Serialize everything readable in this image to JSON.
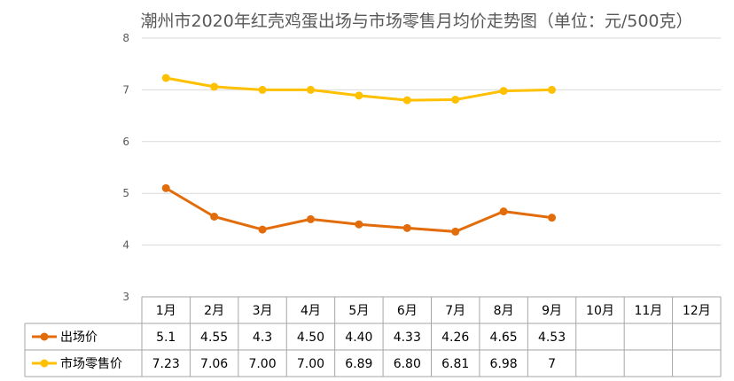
{
  "chart_data": {
    "type": "line",
    "title": "潮州市2020年红壳鸡蛋出场与市场零售月均价走势图（单位：元/500克）",
    "categories": [
      "1月",
      "2月",
      "3月",
      "4月",
      "5月",
      "6月",
      "7月",
      "8月",
      "9月",
      "10月",
      "11月",
      "12月"
    ],
    "ylim": [
      3,
      8
    ],
    "yticks": [
      "3",
      "4",
      "5",
      "6",
      "7",
      "8"
    ],
    "grid": true,
    "legend": "data-table-left",
    "series": [
      {
        "name": "出场价",
        "color": "#E36C0A",
        "values": [
          5.1,
          4.55,
          4.3,
          4.5,
          4.4,
          4.33,
          4.26,
          4.65,
          4.53,
          null,
          null,
          null
        ],
        "labels": [
          "5.1",
          "4.55",
          "4.3",
          "4.50",
          "4.40",
          "4.33",
          "4.26",
          "4.65",
          "4.53",
          "",
          "",
          ""
        ]
      },
      {
        "name": "市场零售价",
        "color": "#FFC000",
        "values": [
          7.23,
          7.06,
          7.0,
          7.0,
          6.89,
          6.8,
          6.81,
          6.98,
          7,
          null,
          null,
          null
        ],
        "labels": [
          "7.23",
          "7.06",
          "7.00",
          "7.00",
          "6.89",
          "6.80",
          "6.81",
          "6.98",
          "7",
          "",
          "",
          ""
        ]
      }
    ]
  }
}
